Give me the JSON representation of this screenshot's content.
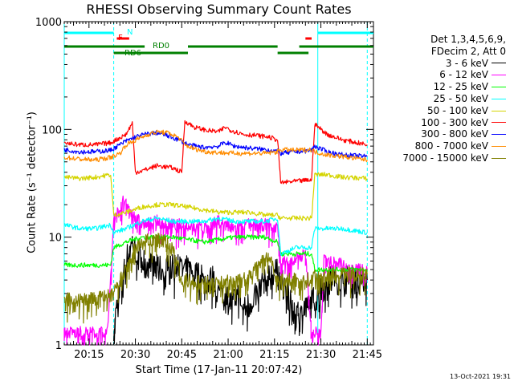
{
  "page": {
    "title": "RHESSI Observing Summary Count Rates",
    "timestamp": "13-Oct-2021 19:31"
  },
  "chart_data": {
    "type": "line",
    "title": "RHESSI Observing Summary Count Rates",
    "xlabel": "Start Time (17-Jan-11 20:07:42)",
    "ylabel": "Count Rate (s⁻¹ detector⁻¹)",
    "yscale": "log",
    "ylim": [
      1,
      1000
    ],
    "xlim_minutes": [
      0,
      100
    ],
    "x_ticks": [
      {
        "t": 8,
        "label": "20:15"
      },
      {
        "t": 23,
        "label": "20:30"
      },
      {
        "t": 38,
        "label": "20:45"
      },
      {
        "t": 53,
        "label": "21:00"
      },
      {
        "t": 68,
        "label": "21:15"
      },
      {
        "t": 83,
        "label": "21:30"
      },
      {
        "t": 98,
        "label": "21:45"
      }
    ],
    "y_ticks": [
      {
        "v": 1,
        "label": "1"
      },
      {
        "v": 10,
        "label": "10"
      },
      {
        "v": 100,
        "label": "100"
      },
      {
        "v": 1000,
        "label": "1000"
      }
    ],
    "legend_header": [
      "Det 1,3,4,5,6,9,",
      "FDecim 2, Att 0"
    ],
    "series": [
      {
        "name": "3 - 6 keV",
        "color": "#000000",
        "points": [
          [
            16,
            1.5
          ],
          [
            18,
            3
          ],
          [
            20,
            6
          ],
          [
            22,
            9
          ],
          [
            25,
            6
          ],
          [
            30,
            5
          ],
          [
            35,
            5
          ],
          [
            40,
            5
          ],
          [
            45,
            4
          ],
          [
            48,
            4
          ],
          [
            50,
            3
          ],
          [
            54,
            2.5
          ],
          [
            56,
            3
          ],
          [
            58,
            2
          ],
          [
            62,
            3
          ],
          [
            66,
            4
          ],
          [
            68,
            5
          ],
          [
            70,
            4
          ],
          [
            72,
            3
          ],
          [
            74,
            2
          ],
          [
            78,
            2
          ],
          [
            82,
            3
          ],
          [
            86,
            4
          ],
          [
            92,
            4
          ],
          [
            98,
            4
          ]
        ]
      },
      {
        "name": "6 - 12 keV",
        "color": "#ff00ff",
        "points": [
          [
            0,
            1.3
          ],
          [
            5,
            1.3
          ],
          [
            10,
            1.3
          ],
          [
            14,
            1.3
          ],
          [
            16,
            15
          ],
          [
            18,
            18
          ],
          [
            19,
            22
          ],
          [
            22,
            16
          ],
          [
            26,
            13
          ],
          [
            30,
            14
          ],
          [
            35,
            13
          ],
          [
            40,
            13
          ],
          [
            45,
            12
          ],
          [
            50,
            14
          ],
          [
            54,
            12
          ],
          [
            58,
            13
          ],
          [
            62,
            13
          ],
          [
            66,
            13
          ],
          [
            69,
            12
          ],
          [
            70,
            6
          ],
          [
            74,
            6
          ],
          [
            78,
            7
          ],
          [
            80,
            1.3
          ],
          [
            83,
            1.3
          ],
          [
            84,
            6
          ],
          [
            88,
            6
          ],
          [
            92,
            5
          ],
          [
            98,
            5
          ]
        ]
      },
      {
        "name": "12 - 25 keV",
        "color": "#00ff00",
        "points": [
          [
            0,
            5.5
          ],
          [
            5,
            5.5
          ],
          [
            10,
            5.5
          ],
          [
            15,
            5.5
          ],
          [
            16,
            8
          ],
          [
            20,
            9
          ],
          [
            25,
            10
          ],
          [
            30,
            10
          ],
          [
            35,
            10
          ],
          [
            40,
            9.5
          ],
          [
            45,
            9
          ],
          [
            50,
            9.5
          ],
          [
            55,
            10
          ],
          [
            60,
            10
          ],
          [
            65,
            10
          ],
          [
            69,
            9
          ],
          [
            70,
            7
          ],
          [
            75,
            7
          ],
          [
            80,
            7
          ],
          [
            81,
            5
          ],
          [
            85,
            5
          ],
          [
            90,
            5
          ],
          [
            98,
            5
          ]
        ]
      },
      {
        "name": "25 - 50 keV",
        "color": "#00ffff",
        "points": [
          [
            0,
            13
          ],
          [
            5,
            12
          ],
          [
            10,
            12
          ],
          [
            15,
            13
          ],
          [
            16,
            11
          ],
          [
            20,
            12
          ],
          [
            25,
            14
          ],
          [
            30,
            15
          ],
          [
            35,
            14
          ],
          [
            40,
            14
          ],
          [
            45,
            14
          ],
          [
            50,
            15
          ],
          [
            55,
            14
          ],
          [
            60,
            14
          ],
          [
            65,
            14
          ],
          [
            69,
            15
          ],
          [
            70,
            7
          ],
          [
            75,
            8
          ],
          [
            80,
            8
          ],
          [
            81,
            12
          ],
          [
            85,
            12
          ],
          [
            90,
            12
          ],
          [
            98,
            11
          ]
        ]
      },
      {
        "name": "50 - 100 keV",
        "color": "#d4d400",
        "points": [
          [
            0,
            36
          ],
          [
            5,
            35
          ],
          [
            10,
            36
          ],
          [
            15,
            38
          ],
          [
            16,
            16
          ],
          [
            20,
            17
          ],
          [
            25,
            19
          ],
          [
            30,
            20
          ],
          [
            35,
            20
          ],
          [
            40,
            19
          ],
          [
            45,
            18
          ],
          [
            50,
            17
          ],
          [
            55,
            17
          ],
          [
            60,
            17
          ],
          [
            65,
            16
          ],
          [
            69,
            16
          ],
          [
            70,
            15
          ],
          [
            75,
            15
          ],
          [
            80,
            15
          ],
          [
            81,
            38
          ],
          [
            85,
            38
          ],
          [
            90,
            36
          ],
          [
            98,
            35
          ]
        ]
      },
      {
        "name": "100 - 300 keV",
        "color": "#ff0000",
        "points": [
          [
            0,
            75
          ],
          [
            5,
            72
          ],
          [
            10,
            72
          ],
          [
            15,
            75
          ],
          [
            20,
            90
          ],
          [
            22,
            115
          ],
          [
            23,
            40
          ],
          [
            26,
            42
          ],
          [
            30,
            46
          ],
          [
            35,
            44
          ],
          [
            38,
            40
          ],
          [
            39,
            120
          ],
          [
            42,
            105
          ],
          [
            46,
            98
          ],
          [
            50,
            95
          ],
          [
            52,
            105
          ],
          [
            54,
            98
          ],
          [
            58,
            90
          ],
          [
            62,
            88
          ],
          [
            66,
            85
          ],
          [
            69,
            80
          ],
          [
            70,
            32
          ],
          [
            75,
            33
          ],
          [
            80,
            34
          ],
          [
            81,
            112
          ],
          [
            85,
            90
          ],
          [
            90,
            80
          ],
          [
            98,
            72
          ]
        ]
      },
      {
        "name": "300 - 800 keV",
        "color": "#0000ff",
        "points": [
          [
            0,
            65
          ],
          [
            5,
            62
          ],
          [
            10,
            62
          ],
          [
            15,
            64
          ],
          [
            20,
            78
          ],
          [
            23,
            85
          ],
          [
            26,
            90
          ],
          [
            30,
            93
          ],
          [
            33,
            88
          ],
          [
            36,
            82
          ],
          [
            38,
            78
          ],
          [
            40,
            72
          ],
          [
            45,
            68
          ],
          [
            50,
            70
          ],
          [
            52,
            76
          ],
          [
            55,
            70
          ],
          [
            60,
            67
          ],
          [
            65,
            65
          ],
          [
            69,
            63
          ],
          [
            70,
            60
          ],
          [
            75,
            62
          ],
          [
            80,
            64
          ],
          [
            81,
            70
          ],
          [
            85,
            62
          ],
          [
            90,
            58
          ],
          [
            98,
            56
          ]
        ]
      },
      {
        "name": "800 - 7000 keV",
        "color": "#ff8c00",
        "points": [
          [
            0,
            55
          ],
          [
            5,
            53
          ],
          [
            10,
            52
          ],
          [
            15,
            55
          ],
          [
            18,
            60
          ],
          [
            20,
            72
          ],
          [
            24,
            82
          ],
          [
            28,
            92
          ],
          [
            31,
            95
          ],
          [
            34,
            92
          ],
          [
            37,
            84
          ],
          [
            39,
            72
          ],
          [
            42,
            66
          ],
          [
            46,
            62
          ],
          [
            50,
            61
          ],
          [
            55,
            60
          ],
          [
            60,
            60
          ],
          [
            65,
            60
          ],
          [
            69,
            62
          ],
          [
            70,
            65
          ],
          [
            75,
            64
          ],
          [
            80,
            65
          ],
          [
            81,
            62
          ],
          [
            85,
            58
          ],
          [
            90,
            56
          ],
          [
            98,
            52
          ]
        ]
      },
      {
        "name": "7000 - 15000 keV",
        "color": "#808000",
        "points": [
          [
            0,
            2.7
          ],
          [
            5,
            2.6
          ],
          [
            10,
            2.7
          ],
          [
            15,
            2.8
          ],
          [
            16,
            3
          ],
          [
            20,
            5
          ],
          [
            23,
            8
          ],
          [
            26,
            9
          ],
          [
            29,
            9.5
          ],
          [
            32,
            9
          ],
          [
            35,
            8
          ],
          [
            38,
            4
          ],
          [
            42,
            3.8
          ],
          [
            46,
            3.8
          ],
          [
            50,
            3.8
          ],
          [
            54,
            3.8
          ],
          [
            58,
            4
          ],
          [
            62,
            5
          ],
          [
            65,
            7
          ],
          [
            67,
            6
          ],
          [
            69,
            4
          ],
          [
            70,
            4
          ],
          [
            75,
            4
          ],
          [
            80,
            4
          ],
          [
            81,
            4.5
          ],
          [
            85,
            4.5
          ],
          [
            90,
            4.5
          ],
          [
            98,
            4.5
          ]
        ]
      }
    ],
    "annotation_bars": [
      {
        "label": "N",
        "color": "#00ffff",
        "row": 1,
        "segments": [
          [
            0,
            16
          ],
          [
            82,
            100
          ]
        ]
      },
      {
        "label": "F",
        "color": "#ff0000",
        "row": 2,
        "segments": [
          [
            17,
            21
          ],
          [
            78,
            80
          ]
        ]
      },
      {
        "label": "RD0",
        "color": "#008000",
        "row": 3,
        "segments": [
          [
            0,
            26
          ],
          [
            40,
            69
          ],
          [
            76,
            100
          ]
        ]
      },
      {
        "label": "RD6",
        "color": "#008000",
        "row": 4,
        "segments": [
          [
            16,
            40
          ],
          [
            69,
            79
          ]
        ]
      }
    ],
    "vertical_markers": [
      {
        "t": 0,
        "color": "#00ffff",
        "style": "solid"
      },
      {
        "t": 16,
        "color": "#00ffff",
        "style": "dashed"
      },
      {
        "t": 82,
        "color": "#00ffff",
        "style": "solid"
      },
      {
        "t": 98,
        "color": "#00ffff",
        "style": "dashed"
      }
    ]
  }
}
